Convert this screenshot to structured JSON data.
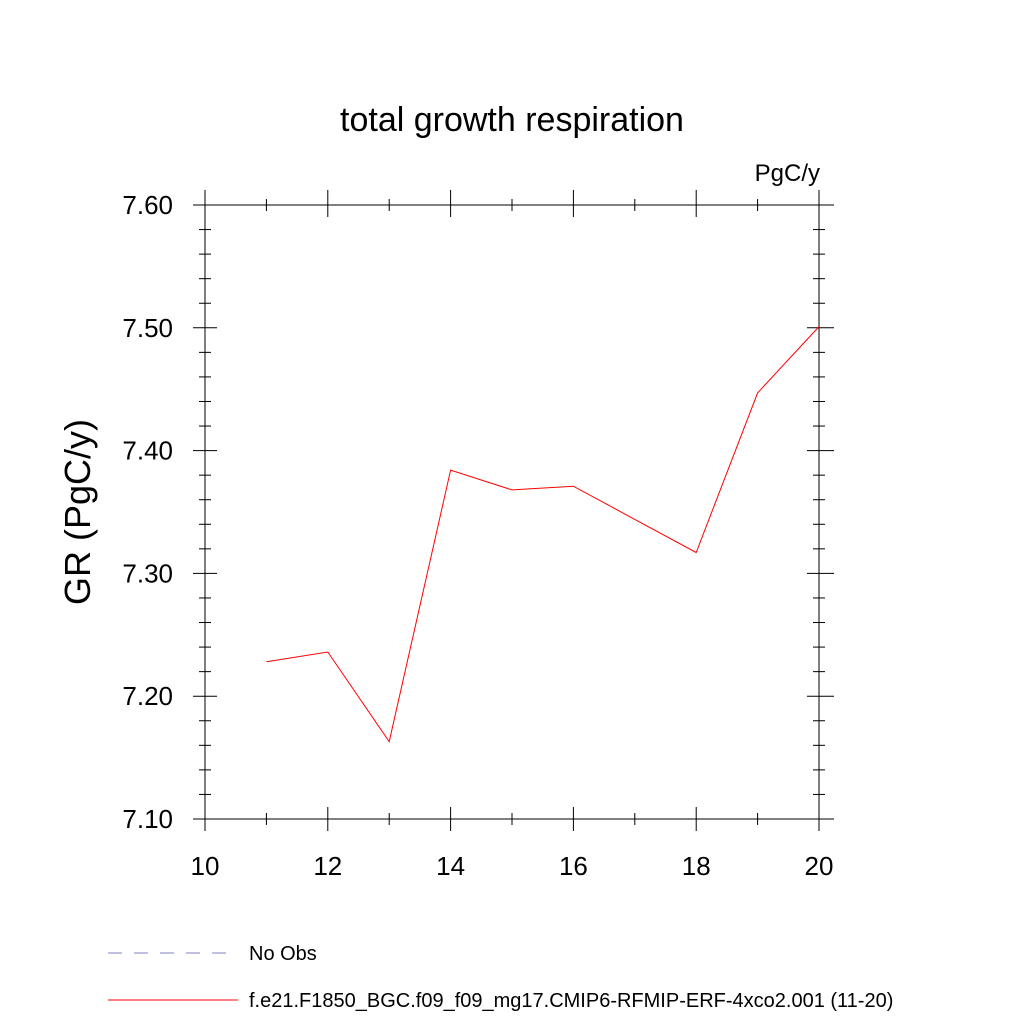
{
  "chart_data": {
    "type": "line",
    "title": "total growth respiration",
    "units_label": "PgC/y",
    "ylabel": "GR  (PgC/y)",
    "xlabel": "",
    "xlim": [
      10,
      20
    ],
    "ylim": [
      7.1,
      7.6
    ],
    "x_ticks": [
      10,
      12,
      14,
      16,
      18,
      20
    ],
    "x_tick_labels": [
      "10",
      "12",
      "14",
      "16",
      "18",
      "20"
    ],
    "y_ticks": [
      7.1,
      7.2,
      7.3,
      7.4,
      7.5,
      7.6
    ],
    "y_tick_labels": [
      "7.10",
      "7.20",
      "7.30",
      "7.40",
      "7.50",
      "7.60"
    ],
    "grid": false,
    "series": [
      {
        "name": "f.e21.F1850_BGC.f09_f09_mg17.CMIP6-RFMIP-ERF-4xco2.001 (11-20)",
        "color": "#ff0000",
        "style": "solid",
        "x": [
          11,
          12,
          13,
          14,
          15,
          16,
          17,
          18,
          19,
          20
        ],
        "y": [
          7.228,
          7.236,
          7.163,
          7.384,
          7.368,
          7.371,
          7.344,
          7.317,
          7.447,
          7.501
        ]
      }
    ],
    "legend": [
      {
        "label": "No Obs",
        "color": "#8080c0",
        "style": "dashed"
      },
      {
        "label": "f.e21.F1850_BGC.f09_f09_mg17.CMIP6-RFMIP-ERF-4xco2.001 (11-20)",
        "color": "#ff0000",
        "style": "solid"
      }
    ],
    "legend_position": "bottom-left"
  }
}
